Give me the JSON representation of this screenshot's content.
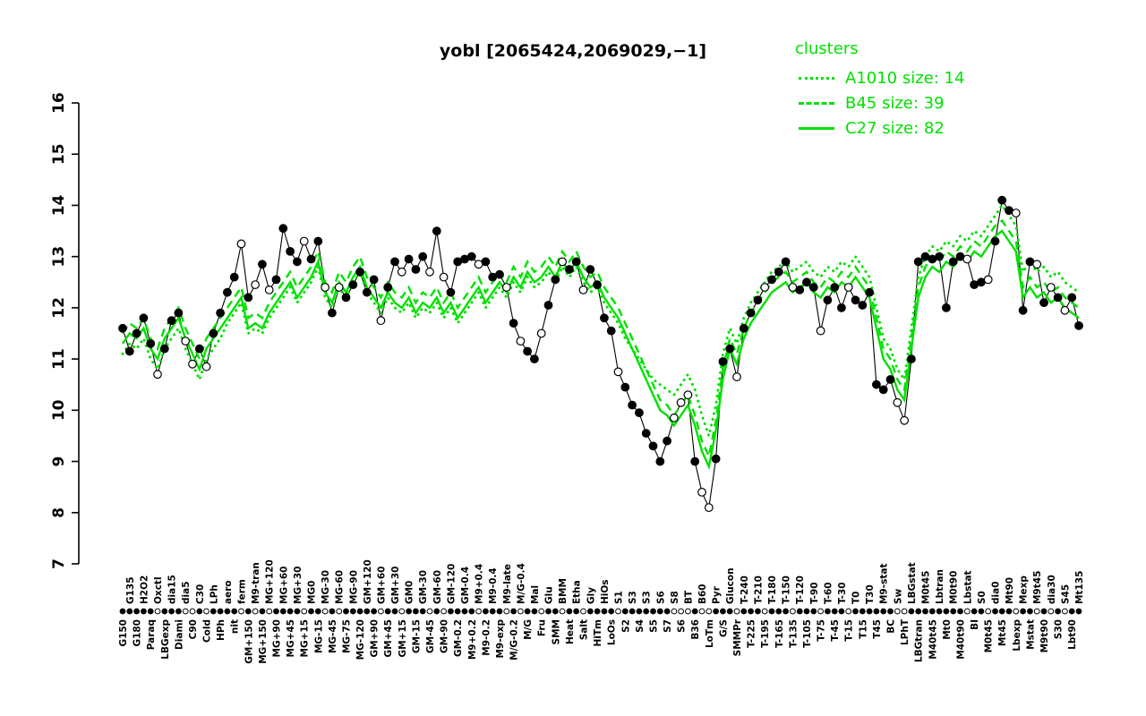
{
  "page": {
    "background": "#ffffff",
    "accent_green": "#00e000",
    "series_black": "#000000"
  },
  "chart_data": {
    "type": "line",
    "title": "yobl [2065424,2069029,−1]",
    "ylim": [
      7,
      16
    ],
    "yticks": [
      7,
      8,
      9,
      10,
      11,
      12,
      13,
      14,
      15,
      16
    ],
    "grid": false,
    "legend": {
      "title": "clusters",
      "position": "top-right"
    },
    "categories": [
      "G150",
      "G135",
      "G180",
      "H2O2",
      "Paraq",
      "Oxctl",
      "LBGexp",
      "dia15",
      "Diami",
      "dia5",
      "C90",
      "C30",
      "Cold",
      "LPh",
      "HPh",
      "aero",
      "nit",
      "ferm",
      "GM+150",
      "M9-tran",
      "MG+150",
      "MG+120",
      "MG+90",
      "MG+60",
      "MG+45",
      "MG+30",
      "MG+15",
      "MG0",
      "MG-15",
      "MG-30",
      "MG-45",
      "MG-60",
      "MG-75",
      "MG-90",
      "MG-120",
      "GM+120",
      "GM+90",
      "GM+60",
      "GM+45",
      "GM+30",
      "GM+15",
      "GM0",
      "GM-15",
      "GM-30",
      "GM-45",
      "GM-60",
      "GM-90",
      "GM-120",
      "GM-0.2",
      "GM-0.4",
      "M9+0.2",
      "M9+0.4",
      "M9-0.2",
      "M9-0.4",
      "M9-exp",
      "M9-late",
      "M/G-0.2",
      "M/G-0.4",
      "M/G",
      "Mal",
      "Fru",
      "Glu",
      "SMM",
      "BMM",
      "Heat",
      "Etha",
      "Salt",
      "Gly",
      "HiTm",
      "HiOs",
      "LoOs",
      "S1",
      "S2",
      "S3",
      "S4",
      "S3",
      "S5",
      "S6",
      "S7",
      "S8",
      "S6",
      "BT",
      "B36",
      "B60",
      "LoTm",
      "Pyr",
      "G/S",
      "Glucon",
      "SMMPr",
      "T-240",
      "T-225",
      "T-210",
      "T-195",
      "T-180",
      "T-165",
      "T-150",
      "T-135",
      "T-120",
      "T-105",
      "T-90",
      "T-75",
      "T-60",
      "T-45",
      "T-30",
      "T-15",
      "T0",
      "T15",
      "T30",
      "T45",
      "M9-stat",
      "BC",
      "Sw",
      "LPhT",
      "LBGstat",
      "LBGtran",
      "M0t45",
      "M40t45",
      "Lbtran",
      "Mt0",
      "M0t90",
      "M40t90",
      "Lbstat",
      "BI",
      "S0",
      "M0t45",
      "dia0",
      "Mt45",
      "Mt90",
      "Lbexp",
      "Mexp",
      "Mstat",
      "M9t45",
      "M9t90",
      "dia30",
      "S30",
      "S45",
      "Lbt90",
      "Mt135"
    ],
    "main_series": {
      "name": "yobl",
      "color": "#000000",
      "marker": "circle",
      "values": [
        11.6,
        11.15,
        11.5,
        11.8,
        11.3,
        10.7,
        11.2,
        11.75,
        11.9,
        11.35,
        10.9,
        11.2,
        10.85,
        11.5,
        11.9,
        12.3,
        12.6,
        13.25,
        12.2,
        12.45,
        12.85,
        12.35,
        12.55,
        13.55,
        13.1,
        12.9,
        13.3,
        12.95,
        13.3,
        12.4,
        11.9,
        12.4,
        12.2,
        12.45,
        12.7,
        12.3,
        12.55,
        11.75,
        12.4,
        12.9,
        12.7,
        12.95,
        12.75,
        13.0,
        12.7,
        13.5,
        12.6,
        12.3,
        12.9,
        12.95,
        13.0,
        12.85,
        12.9,
        12.6,
        12.65,
        12.4,
        11.7,
        11.35,
        11.15,
        11.0,
        11.5,
        12.05,
        12.55,
        12.9,
        12.75,
        12.9,
        12.35,
        12.75,
        12.45,
        11.8,
        11.55,
        10.75,
        10.45,
        10.1,
        9.95,
        9.55,
        9.3,
        9.0,
        9.4,
        9.85,
        10.15,
        10.3,
        9.0,
        8.4,
        8.1,
        9.05,
        10.95,
        11.2,
        10.65,
        11.6,
        11.9,
        12.15,
        12.4,
        12.55,
        12.7,
        12.9,
        12.4,
        12.35,
        12.5,
        12.4,
        11.55,
        12.15,
        12.4,
        12.0,
        12.4,
        12.15,
        12.05,
        12.3,
        10.5,
        10.4,
        10.6,
        10.15,
        9.8,
        11.0,
        12.9,
        13.0,
        12.95,
        13.0,
        12.0,
        12.9,
        13.0,
        12.95,
        12.45,
        12.5,
        12.55,
        13.3,
        14.1,
        13.9,
        13.85,
        11.95,
        12.9,
        12.85,
        12.1,
        12.4,
        12.2,
        11.95,
        12.2,
        11.65
      ],
      "open_marker": [
        0,
        0,
        0,
        0,
        0,
        1,
        0,
        0,
        0,
        1,
        1,
        0,
        1,
        0,
        0,
        0,
        0,
        1,
        0,
        1,
        0,
        1,
        0,
        0,
        0,
        0,
        1,
        0,
        0,
        1,
        0,
        1,
        0,
        0,
        0,
        0,
        0,
        1,
        0,
        0,
        1,
        0,
        0,
        0,
        1,
        0,
        1,
        0,
        0,
        0,
        0,
        1,
        0,
        0,
        0,
        1,
        0,
        1,
        0,
        0,
        1,
        0,
        0,
        1,
        0,
        0,
        1,
        0,
        0,
        0,
        0,
        1,
        0,
        0,
        0,
        0,
        0,
        0,
        0,
        1,
        1,
        1,
        0,
        1,
        1,
        0,
        0,
        0,
        1,
        0,
        0,
        0,
        1,
        0,
        0,
        0,
        1,
        0,
        0,
        0,
        1,
        0,
        0,
        0,
        1,
        0,
        0,
        0,
        0,
        0,
        0,
        1,
        1,
        0,
        0,
        0,
        0,
        0,
        0,
        0,
        0,
        1,
        0,
        0,
        1,
        0,
        0,
        0,
        1,
        0,
        0,
        1,
        0,
        1,
        0,
        1,
        0,
        0
      ]
    },
    "series": [
      {
        "name": "A1010",
        "size": 14,
        "legend_label": "A1010 size: 14",
        "style": "dotted",
        "color": "#00e000",
        "values": [
          11.1,
          11.3,
          11.2,
          11.4,
          11.0,
          10.8,
          11.2,
          11.4,
          11.6,
          11.2,
          10.9,
          10.6,
          11.0,
          11.2,
          11.4,
          11.7,
          11.9,
          12.1,
          11.5,
          11.6,
          11.5,
          11.8,
          12.0,
          12.2,
          12.4,
          12.1,
          12.3,
          12.5,
          12.8,
          12.2,
          12.0,
          12.4,
          12.2,
          12.5,
          12.7,
          12.3,
          12.1,
          11.9,
          12.2,
          12.0,
          11.9,
          12.1,
          11.8,
          12.0,
          11.9,
          12.1,
          11.8,
          12.0,
          11.7,
          11.9,
          12.1,
          12.3,
          12.0,
          12.2,
          12.4,
          12.2,
          12.5,
          12.3,
          12.6,
          12.4,
          12.5,
          12.7,
          12.5,
          12.8,
          12.6,
          12.8,
          12.5,
          12.3,
          12.4,
          12.1,
          11.9,
          11.7,
          11.4,
          11.2,
          11.0,
          10.8,
          10.6,
          10.5,
          10.4,
          10.3,
          10.5,
          10.7,
          10.4,
          9.9,
          9.5,
          10.1,
          11.1,
          11.6,
          11.3,
          11.8,
          12.1,
          12.3,
          12.5,
          12.7,
          12.8,
          12.9,
          12.7,
          12.8,
          12.9,
          12.7,
          12.6,
          12.8,
          12.7,
          12.9,
          12.8,
          13.0,
          12.8,
          12.6,
          12.0,
          11.4,
          11.2,
          10.8,
          10.6,
          11.6,
          12.6,
          13.0,
          13.2,
          13.1,
          13.3,
          13.2,
          13.4,
          13.3,
          13.5,
          13.4,
          13.6,
          13.8,
          14.0,
          13.8,
          13.6,
          12.7,
          12.9,
          12.7,
          12.8,
          12.6,
          12.7,
          12.5,
          12.4,
          12.3
        ]
      },
      {
        "name": "B45",
        "size": 39,
        "legend_label": "B45 size: 39",
        "style": "dashed",
        "color": "#00e000",
        "values": [
          11.5,
          11.7,
          11.6,
          11.8,
          11.4,
          11.2,
          11.6,
          11.8,
          12.0,
          11.6,
          11.3,
          11.0,
          11.4,
          11.6,
          11.8,
          12.0,
          12.2,
          12.4,
          11.8,
          11.9,
          11.8,
          12.1,
          12.3,
          12.5,
          12.7,
          12.4,
          12.6,
          12.8,
          13.1,
          12.5,
          12.3,
          12.7,
          12.5,
          12.8,
          13.0,
          12.6,
          12.4,
          12.2,
          12.5,
          12.3,
          12.2,
          12.4,
          12.1,
          12.3,
          12.2,
          12.4,
          12.1,
          12.3,
          12.0,
          12.2,
          12.4,
          12.6,
          12.3,
          12.5,
          12.7,
          12.5,
          12.8,
          12.6,
          12.9,
          12.7,
          12.8,
          13.0,
          12.8,
          13.1,
          12.9,
          13.1,
          12.8,
          12.6,
          12.7,
          12.4,
          12.2,
          12.0,
          11.7,
          11.4,
          11.1,
          10.8,
          10.5,
          10.2,
          10.1,
          9.9,
          10.1,
          10.3,
          9.9,
          9.4,
          9.1,
          9.8,
          10.8,
          11.4,
          11.1,
          11.6,
          11.9,
          12.1,
          12.3,
          12.5,
          12.6,
          12.7,
          12.5,
          12.6,
          12.7,
          12.5,
          12.4,
          12.6,
          12.5,
          12.7,
          12.6,
          12.8,
          12.6,
          12.4,
          11.8,
          11.2,
          11.0,
          10.6,
          10.4,
          11.4,
          12.4,
          12.8,
          13.0,
          12.9,
          13.1,
          13.0,
          13.2,
          13.1,
          13.3,
          13.2,
          13.4,
          13.6,
          13.7,
          13.5,
          13.3,
          12.4,
          12.6,
          12.4,
          12.5,
          12.3,
          12.4,
          12.2,
          12.1,
          12.0
        ]
      },
      {
        "name": "C27",
        "size": 82,
        "legend_label": "C27 size: 82",
        "style": "solid",
        "color": "#00e000",
        "values": [
          11.3,
          11.5,
          11.4,
          11.6,
          11.2,
          11.0,
          11.4,
          11.6,
          11.8,
          11.4,
          11.1,
          10.8,
          11.2,
          11.4,
          11.6,
          11.8,
          12.0,
          12.2,
          11.6,
          11.7,
          11.6,
          11.9,
          12.1,
          12.3,
          12.5,
          12.2,
          12.4,
          12.6,
          12.9,
          12.3,
          12.1,
          12.5,
          12.3,
          12.6,
          12.8,
          12.4,
          12.2,
          12.0,
          12.3,
          12.1,
          12.0,
          12.2,
          11.9,
          12.1,
          12.0,
          12.2,
          11.9,
          12.1,
          11.8,
          12.0,
          12.2,
          12.4,
          12.1,
          12.3,
          12.5,
          12.3,
          12.6,
          12.4,
          12.7,
          12.5,
          12.6,
          12.8,
          12.6,
          12.9,
          12.7,
          12.9,
          12.6,
          12.4,
          12.5,
          12.2,
          12.0,
          11.8,
          11.5,
          11.2,
          10.9,
          10.6,
          10.3,
          10.0,
          9.9,
          9.7,
          9.9,
          10.1,
          9.7,
          9.2,
          8.9,
          9.6,
          10.6,
          11.2,
          10.9,
          11.4,
          11.7,
          11.9,
          12.1,
          12.3,
          12.4,
          12.5,
          12.3,
          12.4,
          12.5,
          12.3,
          12.2,
          12.4,
          12.3,
          12.5,
          12.4,
          12.6,
          12.4,
          12.2,
          11.6,
          11.0,
          10.8,
          10.4,
          10.2,
          11.2,
          12.2,
          12.6,
          12.8,
          12.7,
          12.9,
          12.8,
          13.0,
          12.9,
          13.1,
          13.0,
          13.2,
          13.4,
          13.5,
          13.3,
          13.1,
          12.2,
          12.4,
          12.2,
          12.3,
          12.1,
          12.2,
          12.0,
          11.9,
          11.8
        ]
      }
    ]
  }
}
